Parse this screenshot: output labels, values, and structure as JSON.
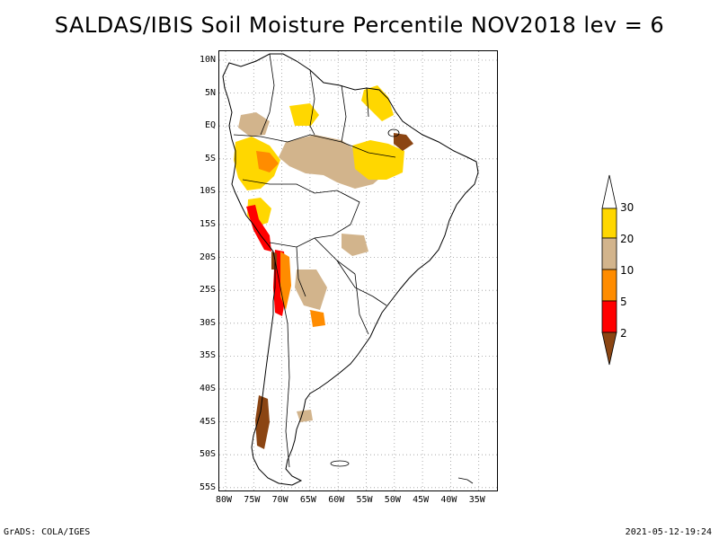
{
  "title": "SALDAS/IBIS Soil Moisture Percentile NOV2018 lev = 6",
  "lat_ticks": [
    "10N",
    "5N",
    "EQ",
    "5S",
    "10S",
    "15S",
    "20S",
    "25S",
    "30S",
    "35S",
    "40S",
    "45S",
    "50S",
    "55S"
  ],
  "lon_ticks": [
    "80W",
    "75W",
    "70W",
    "65W",
    "60W",
    "55W",
    "50W",
    "45W",
    "40W",
    "35W"
  ],
  "colorbar": {
    "labels": [
      "30",
      "20",
      "10",
      "5",
      "2"
    ],
    "colors": [
      "#ffd700",
      "#d2b48c",
      "#ff8c00",
      "#ff0000",
      "#8b4513"
    ]
  },
  "footer": {
    "left": "GrADS: COLA/IGES",
    "right": "2021-05-12-19:24"
  },
  "colors": {
    "gridline": "#999999",
    "coast": "#000000",
    "yellow": "#ffd700",
    "tan": "#d2b48c",
    "orange": "#ff8c00",
    "red": "#ff0000",
    "brown": "#8b4513"
  }
}
